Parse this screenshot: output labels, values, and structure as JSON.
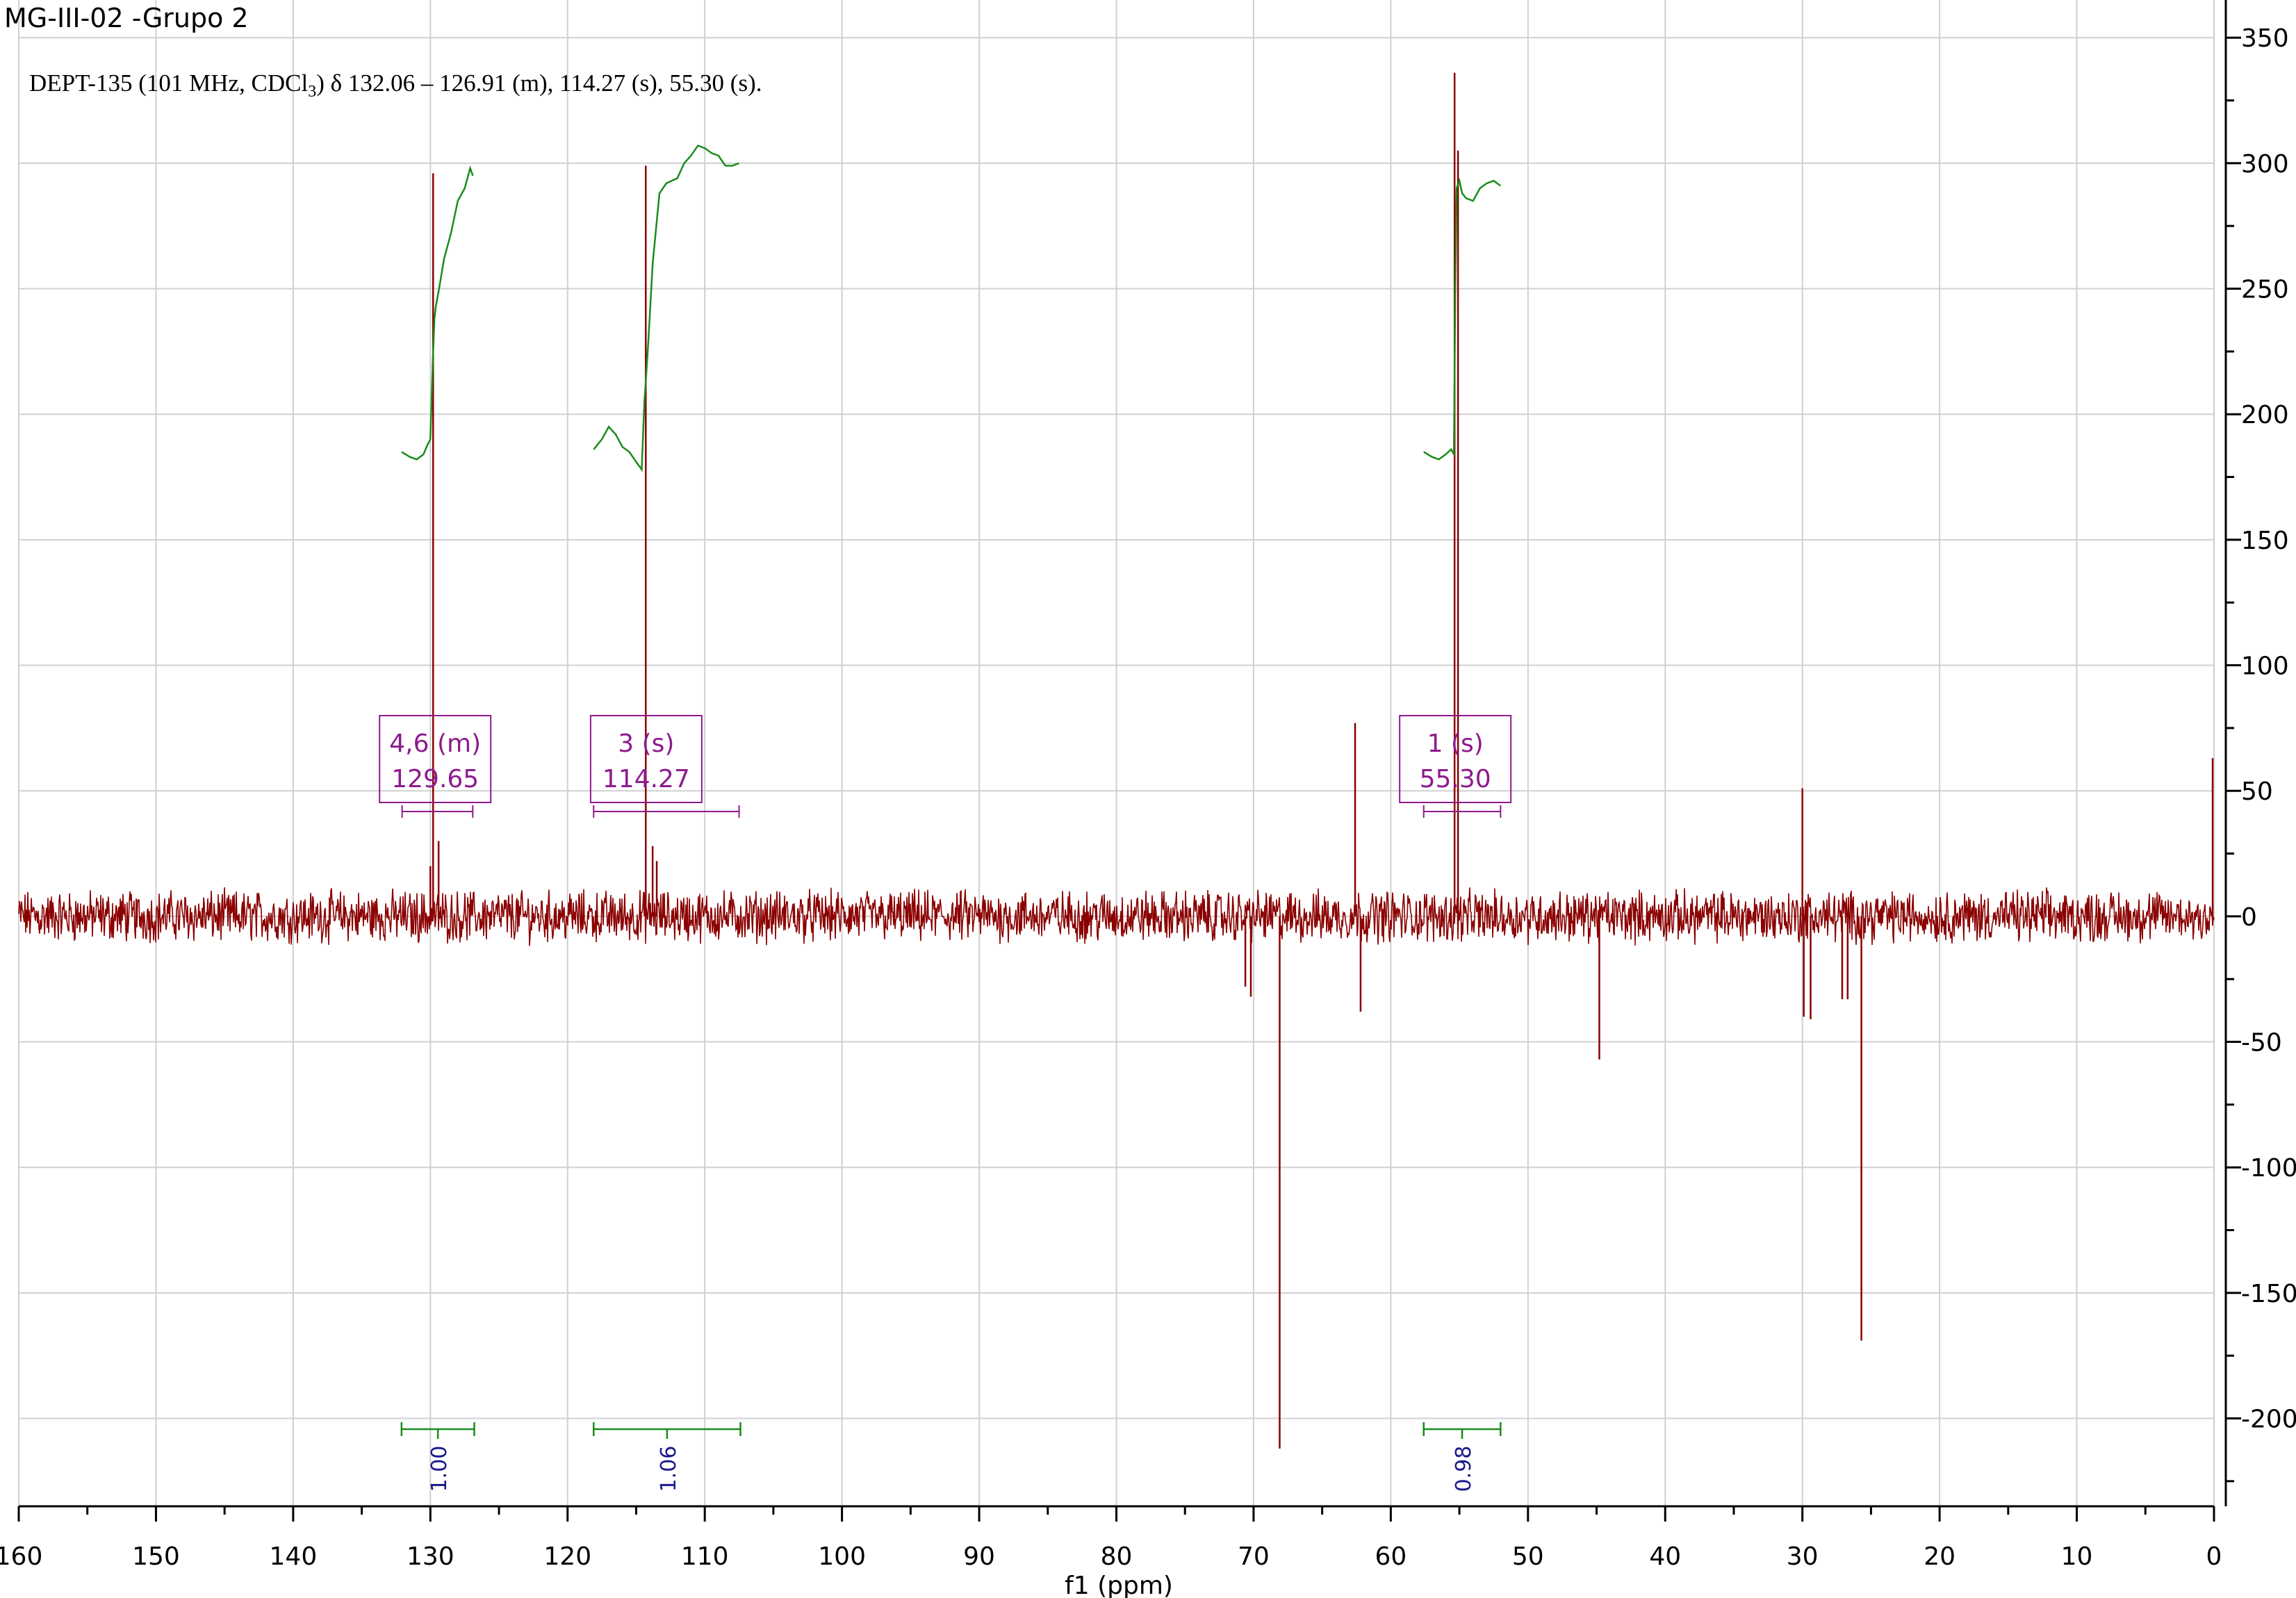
{
  "title": "MG-III-02 -Grupo 2",
  "subtitle": {
    "prefix": "DEPT-135 (101 MHz, CDCl",
    "sub": "3",
    "suffix": ") δ 132.06 – 126.91 (m), 114.27 (s), 55.30 (s)."
  },
  "colors": {
    "spectrum": "#8b0000",
    "integral": "#1a8c1a",
    "multiplet": "#8e1a8e",
    "integral_value": "#1a1a8c",
    "grid": "#d0d0d0",
    "axis": "#000000"
  },
  "chart_data": {
    "type": "line",
    "xlabel": "f1 (ppm)",
    "ylabel": "",
    "xlim": [
      160,
      0
    ],
    "ylim": [
      -235,
      365
    ],
    "grid": true,
    "x_ticks": [
      160,
      150,
      140,
      130,
      120,
      110,
      100,
      90,
      80,
      70,
      60,
      50,
      40,
      30,
      20,
      10,
      0
    ],
    "y_ticks": [
      350,
      300,
      250,
      200,
      150,
      100,
      50,
      0,
      -50,
      -100,
      -150,
      -200
    ],
    "noise_amplitude": 8,
    "peaks": [
      {
        "x": 129.8,
        "y": 296
      },
      {
        "x": 129.4,
        "y": 30
      },
      {
        "x": 130.0,
        "y": 20
      },
      {
        "x": 114.3,
        "y": 299
      },
      {
        "x": 113.8,
        "y": 28
      },
      {
        "x": 113.5,
        "y": 22
      },
      {
        "x": 70.6,
        "y": -28
      },
      {
        "x": 70.2,
        "y": -32
      },
      {
        "x": 68.1,
        "y": -212
      },
      {
        "x": 62.6,
        "y": 77
      },
      {
        "x": 62.2,
        "y": -38
      },
      {
        "x": 55.35,
        "y": 336
      },
      {
        "x": 55.1,
        "y": 305
      },
      {
        "x": 44.8,
        "y": -57
      },
      {
        "x": 30.0,
        "y": 51
      },
      {
        "x": 29.9,
        "y": -40
      },
      {
        "x": 29.4,
        "y": -41
      },
      {
        "x": 27.1,
        "y": -33
      },
      {
        "x": 26.7,
        "y": -33
      },
      {
        "x": 25.7,
        "y": -169
      },
      {
        "x": 0.1,
        "y": 63
      }
    ],
    "integral_traces": [
      {
        "x": [
          132.1,
          131.5,
          131.0,
          130.5,
          130.2,
          130.0,
          129.8,
          129.7,
          129.6,
          129.4,
          129.0,
          128.5,
          128.0,
          127.5,
          127.1,
          126.9
        ],
        "y": [
          185,
          183,
          182,
          184,
          188,
          190,
          225,
          238,
          243,
          249,
          262,
          272,
          285,
          290,
          298,
          295
        ]
      },
      {
        "x": [
          118.1,
          117.5,
          117.0,
          116.5,
          116.0,
          115.5,
          115.0,
          114.6,
          114.4,
          114.3,
          114.1,
          113.8,
          113.3,
          112.8,
          112.0,
          111.5,
          111.0,
          110.5,
          110.0,
          109.5,
          109.0,
          108.5,
          108.0,
          107.5
        ],
        "y": [
          186,
          190,
          195,
          192,
          187,
          185,
          181,
          178,
          205,
          213,
          230,
          260,
          288,
          292,
          294,
          300,
          303,
          307,
          306,
          304,
          303,
          299,
          299,
          300
        ]
      },
      {
        "x": [
          57.6,
          57.0,
          56.5,
          56.0,
          55.6,
          55.4,
          55.3,
          55.2,
          55.0,
          54.8,
          54.5,
          54.0,
          53.5,
          53.0,
          52.5,
          52.0
        ],
        "y": [
          185,
          183,
          182,
          184,
          186,
          184,
          250,
          290,
          293,
          288,
          286,
          285,
          290,
          292,
          293,
          291
        ]
      }
    ],
    "multiplet_labels": [
      {
        "label": "4,6 (m)",
        "shift": "129.65",
        "x_center": 129.65,
        "range": [
          132.06,
          126.91
        ]
      },
      {
        "label": "3 (s)",
        "shift": "114.27",
        "x_center": 114.27,
        "range": [
          118.1,
          107.5
        ]
      },
      {
        "label": "1 (s)",
        "shift": "55.30",
        "x_center": 55.3,
        "range": [
          57.6,
          52.0
        ]
      }
    ],
    "integrals": [
      {
        "value": "1.00",
        "range": [
          132.1,
          126.8
        ]
      },
      {
        "value": "1.06",
        "range": [
          118.1,
          107.4
        ]
      },
      {
        "value": "0.98",
        "range": [
          57.6,
          52.0
        ]
      }
    ]
  }
}
